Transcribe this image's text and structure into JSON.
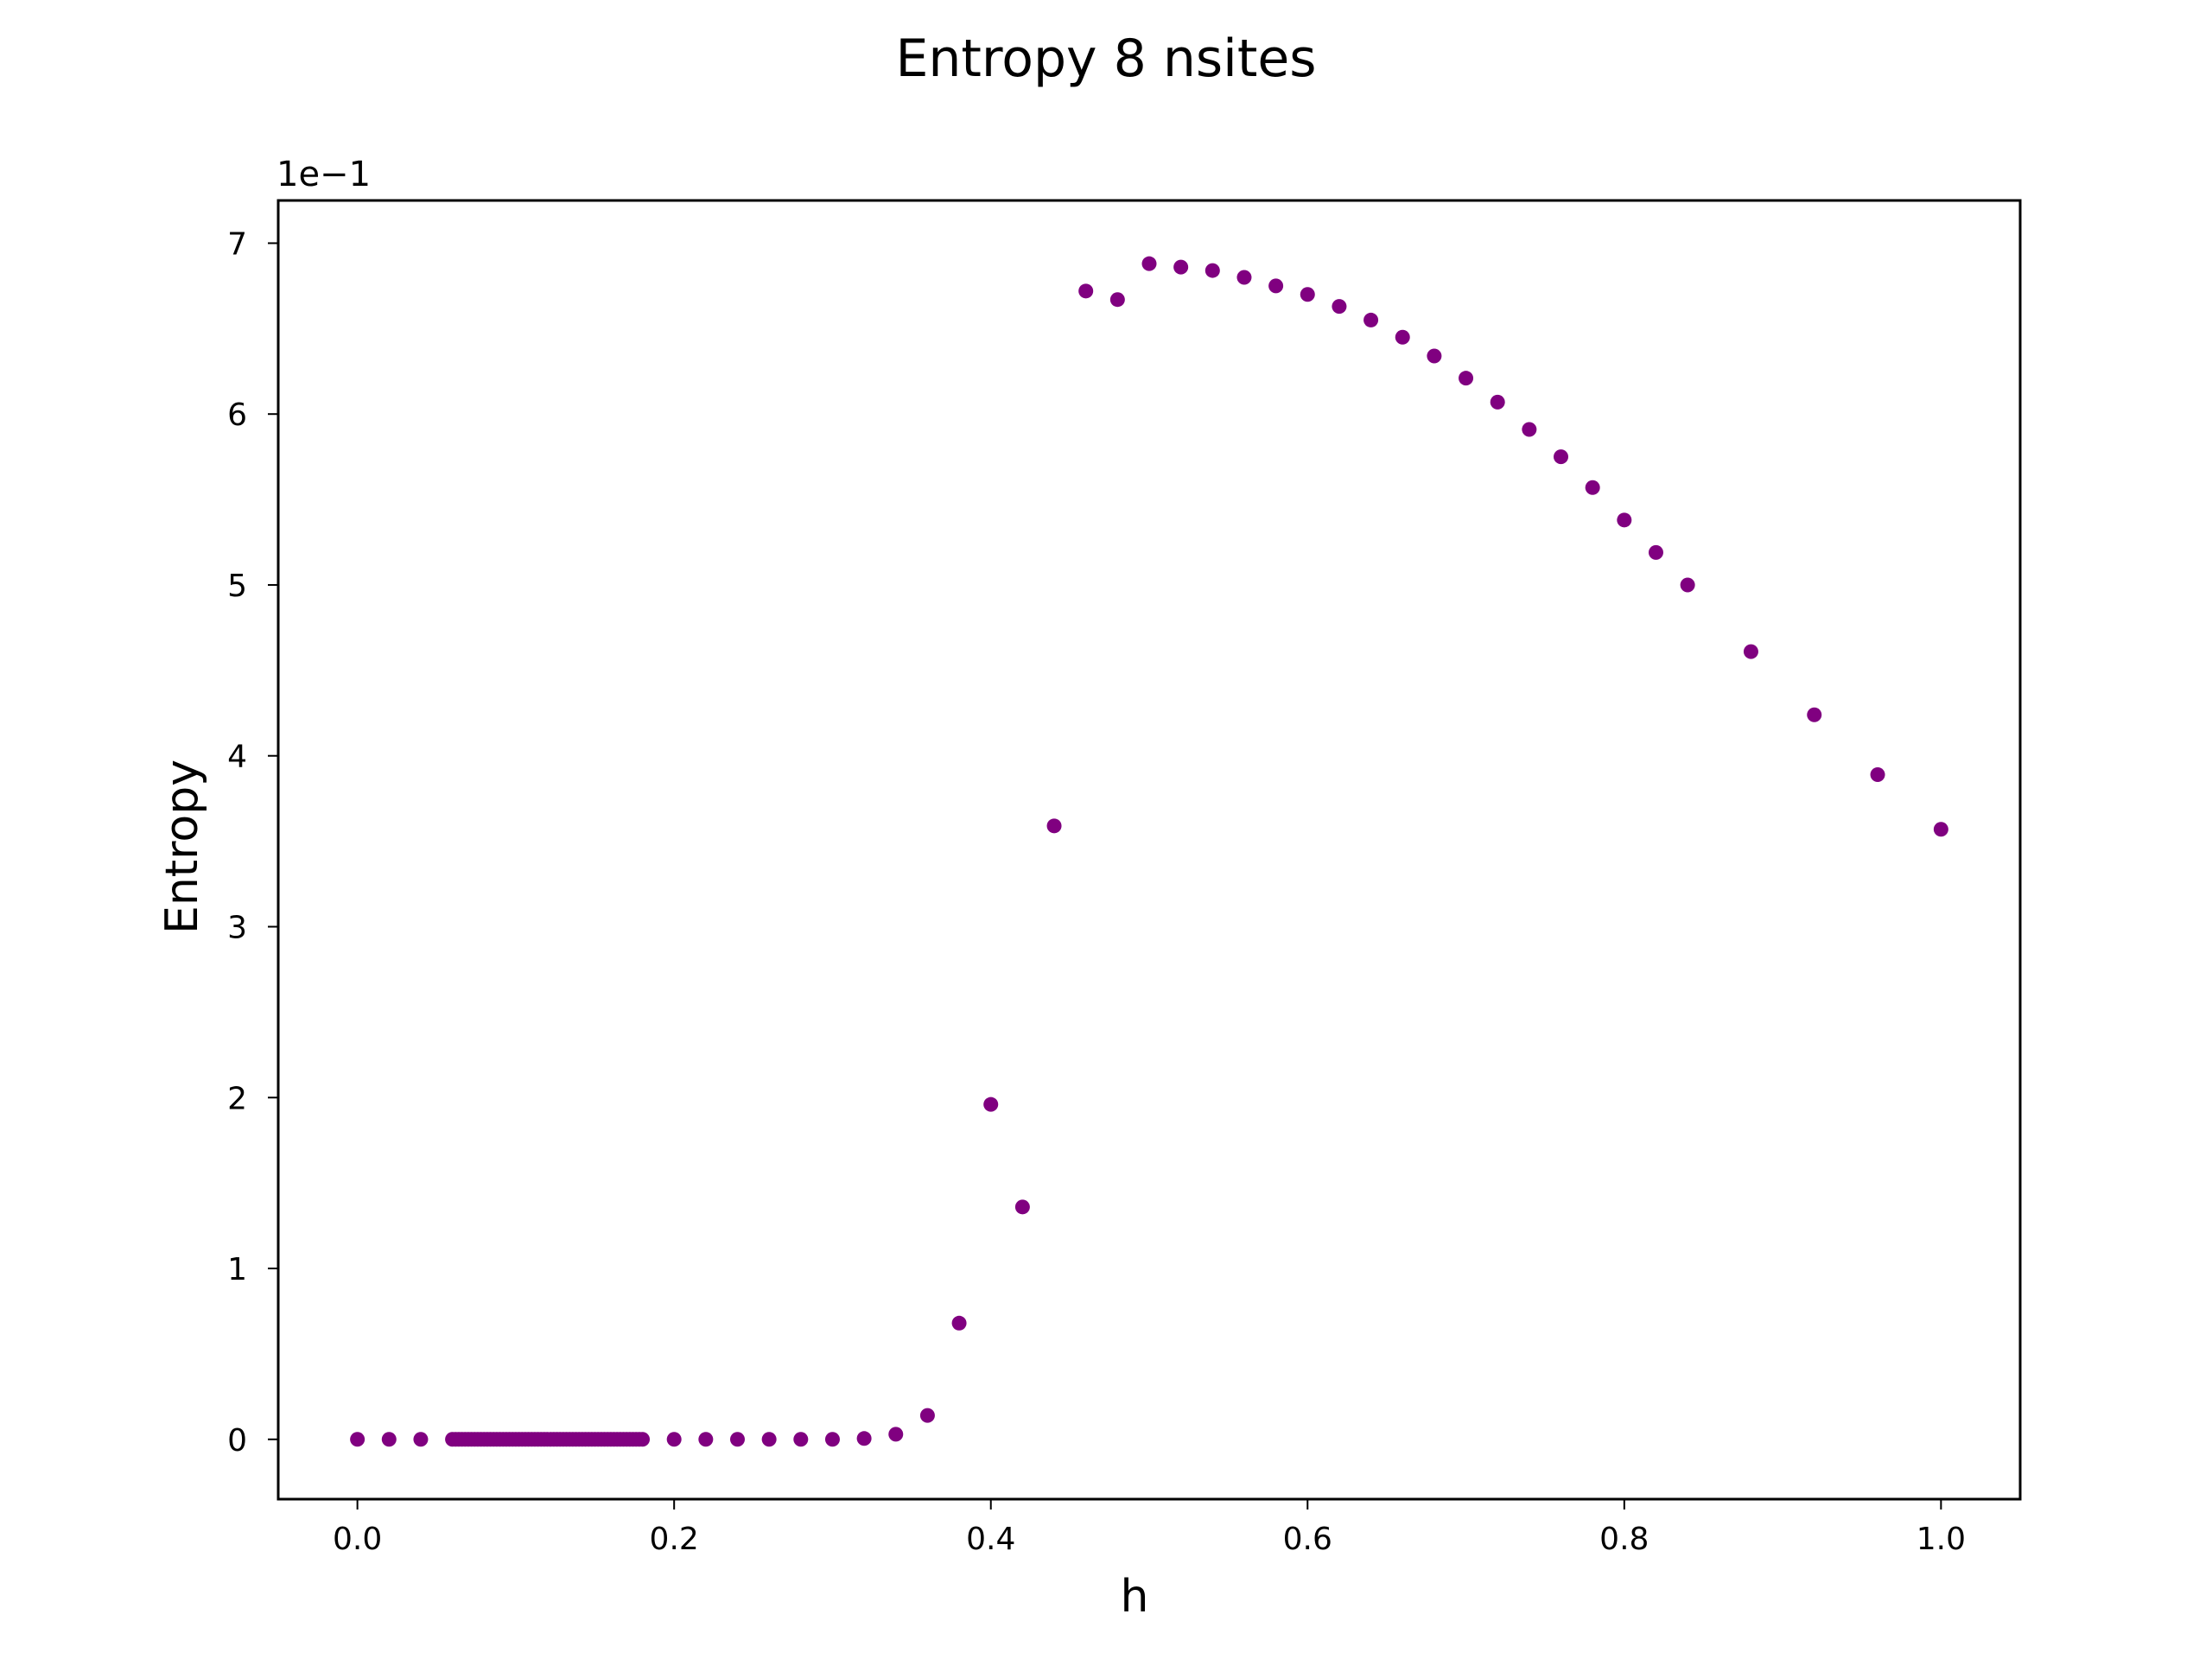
{
  "chart_data": {
    "type": "scatter",
    "title": "Entropy 8 nsites",
    "xlabel": "h",
    "ylabel": "Entropy",
    "y_offset_label": "1e−1",
    "y_scale_factor": 0.1,
    "xlim": [
      -0.05,
      1.05
    ],
    "ylim": [
      -0.035,
      0.725
    ],
    "xticks": [
      0.0,
      0.2,
      0.4,
      0.6,
      0.8,
      1.0
    ],
    "xtick_labels": [
      "0.0",
      "0.2",
      "0.4",
      "0.6",
      "0.8",
      "1.0"
    ],
    "yticks": [
      0,
      0.1,
      0.2,
      0.3,
      0.4,
      0.5,
      0.6,
      0.7
    ],
    "ytick_labels": [
      "0",
      "1",
      "2",
      "3",
      "4",
      "5",
      "6",
      "7"
    ],
    "grid": false,
    "color": "#800080",
    "series": [
      {
        "x": [
          0.0,
          0.02,
          0.04,
          0.06,
          0.062,
          0.064,
          0.066,
          0.068,
          0.07,
          0.072,
          0.074,
          0.076,
          0.078,
          0.08,
          0.082,
          0.084,
          0.086,
          0.088,
          0.09,
          0.092,
          0.094,
          0.096,
          0.098,
          0.1,
          0.102,
          0.104,
          0.106,
          0.108,
          0.11,
          0.112,
          0.114,
          0.116,
          0.118,
          0.12,
          0.122,
          0.124,
          0.126,
          0.128,
          0.13,
          0.132,
          0.134,
          0.136,
          0.138,
          0.14,
          0.142,
          0.144,
          0.146,
          0.148,
          0.15,
          0.152,
          0.154,
          0.156,
          0.158,
          0.16,
          0.162,
          0.164,
          0.166,
          0.168,
          0.17,
          0.172,
          0.174,
          0.176,
          0.178,
          0.18,
          0.2,
          0.22,
          0.24,
          0.26,
          0.28,
          0.3,
          0.32,
          0.34,
          0.36,
          0.38,
          0.4,
          0.42,
          0.44,
          0.46,
          0.48,
          0.5,
          0.52,
          0.54,
          0.56,
          0.58,
          0.6,
          0.62,
          0.64,
          0.66,
          0.68,
          0.7,
          0.72,
          0.74,
          0.76,
          0.78,
          0.8,
          0.82,
          0.84,
          0.88,
          0.92,
          0.96,
          1.0
        ],
        "y": [
          0.0,
          0.0,
          0.0,
          0.0,
          0.0,
          0.0,
          0.0,
          0.0,
          0.0,
          0.0,
          0.0,
          0.0,
          0.0,
          0.0,
          0.0,
          0.0,
          0.0,
          0.0,
          0.0,
          0.0,
          0.0,
          0.0,
          0.0,
          0.0,
          0.0,
          0.0,
          0.0,
          0.0,
          0.0,
          0.0,
          0.0,
          0.0,
          0.0,
          0.0,
          0.0,
          0.0,
          0.0,
          0.0,
          0.0,
          0.0,
          0.0,
          0.0,
          0.0,
          0.0,
          0.0,
          0.0,
          0.0,
          0.0,
          0.0,
          0.0,
          0.0,
          0.0,
          0.0,
          0.0,
          0.0,
          0.0,
          0.0,
          0.0,
          0.0,
          0.0,
          0.0,
          0.0,
          0.0,
          0.0,
          0.0,
          0.0,
          0.0,
          0.0,
          0.0,
          0.0,
          0.0005,
          0.003,
          0.014,
          0.068,
          0.196,
          0.136,
          0.359,
          0.672,
          0.667,
          0.688,
          0.686,
          0.684,
          0.68,
          0.675,
          0.67,
          0.663,
          0.655,
          0.645,
          0.634,
          0.621,
          0.607,
          0.591,
          0.575,
          0.557,
          0.538,
          0.519,
          0.5,
          0.461,
          0.424,
          0.389,
          0.357
        ]
      }
    ]
  }
}
